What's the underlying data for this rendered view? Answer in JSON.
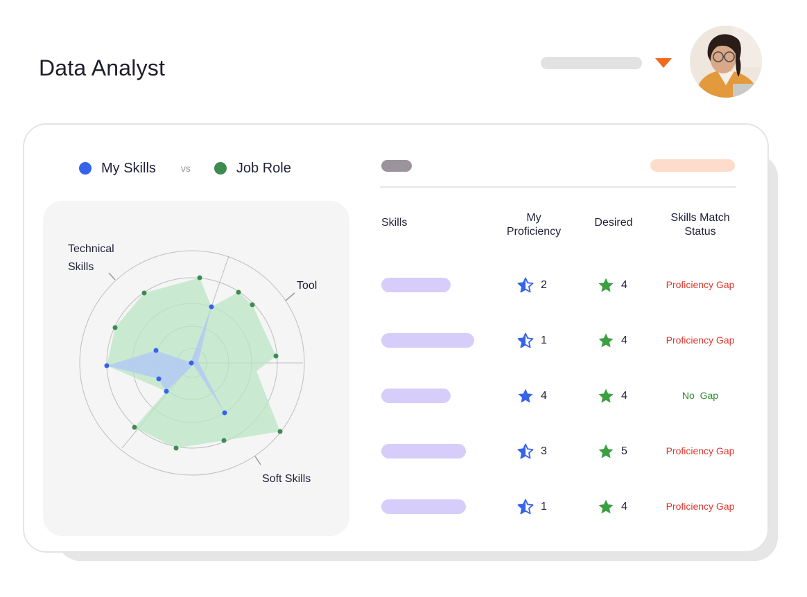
{
  "header": {
    "title": "Data Analyst"
  },
  "colors": {
    "my_skills": "#3563e9",
    "job_role": "#3d8b4f",
    "gap": "#e0382f",
    "no_gap": "#2e8b2e",
    "accent": "#f26a1b"
  },
  "legend": {
    "my_skills_label": "My Skills",
    "vs_label": "vs",
    "job_role_label": "Job Role"
  },
  "chart_data": {
    "type": "radar",
    "categories": [
      "Technical Skills",
      "Tool",
      "Soft Skills"
    ],
    "category_labels": {
      "technical_line1": "Technical",
      "technical_line2": "Skills",
      "tool": "Tool",
      "soft": "Soft Skills"
    },
    "rings": 4,
    "grid": true
  },
  "table": {
    "headers": {
      "skills": "Skills",
      "my_proficiency_line1": "My",
      "my_proficiency_line2": "Proficiency",
      "desired": "Desired",
      "status_line1": "Skills Match",
      "status_line2": "Status"
    },
    "rows": [
      {
        "my": "2",
        "my_star": "half",
        "desired": "4",
        "status": "Proficiency Gap",
        "gap": true
      },
      {
        "my": "1",
        "my_star": "half",
        "desired": "4",
        "status": "Proficiency Gap",
        "gap": true
      },
      {
        "my": "4",
        "my_star": "full",
        "desired": "4",
        "status": "No  Gap",
        "gap": false
      },
      {
        "my": "3",
        "my_star": "half",
        "desired": "5",
        "status": "Proficiency Gap",
        "gap": true
      },
      {
        "my": "1",
        "my_star": "half",
        "desired": "4",
        "status": "Proficiency Gap",
        "gap": true
      }
    ]
  }
}
